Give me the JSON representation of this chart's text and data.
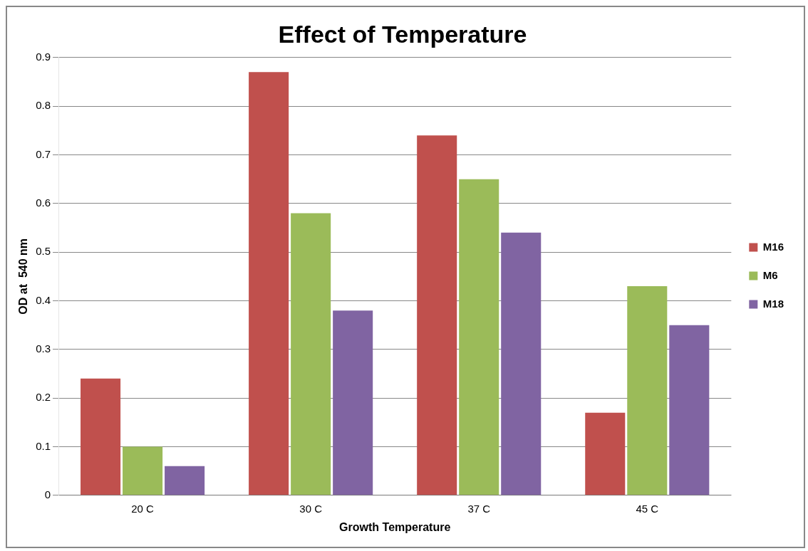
{
  "chart_data": {
    "type": "bar",
    "title": "Effect of Temperature",
    "xlabel": "Growth Temperature",
    "ylabel": "OD at  540 nm",
    "categories": [
      "20 C",
      "30 C",
      "37 C",
      "45 C"
    ],
    "series": [
      {
        "name": "M16",
        "color": "#c0504d",
        "values": [
          0.24,
          0.87,
          0.74,
          0.17
        ]
      },
      {
        "name": "M6",
        "color": "#9bbb59",
        "values": [
          0.1,
          0.58,
          0.65,
          0.43
        ]
      },
      {
        "name": "M18",
        "color": "#8064a2",
        "values": [
          0.06,
          0.38,
          0.54,
          0.35
        ]
      }
    ],
    "ylim": [
      0,
      0.9
    ],
    "yticks": [
      0,
      0.1,
      0.2,
      0.3,
      0.4,
      0.5,
      0.6,
      0.7,
      0.8,
      0.9
    ],
    "grid": "y",
    "legend": "right"
  }
}
